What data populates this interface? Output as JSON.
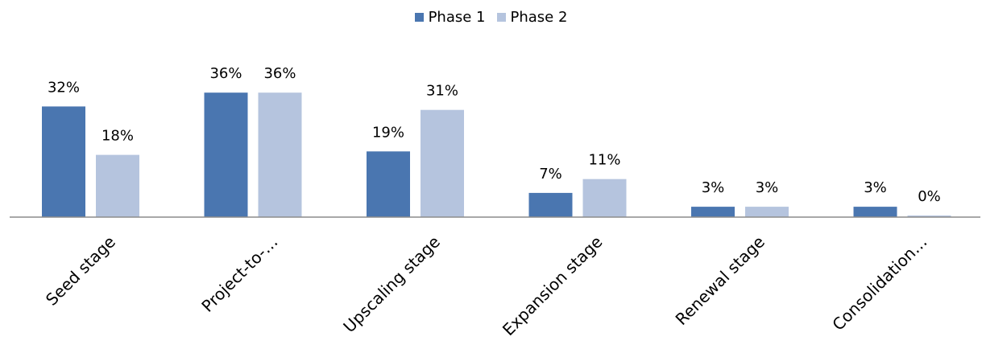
{
  "chart_data": {
    "type": "bar",
    "categories": [
      "Seed stage",
      "Project-to-…",
      "Upscaling stage",
      "Expansion stage",
      "Renewal stage",
      "Consolidation…"
    ],
    "series": [
      {
        "name": "Phase 1",
        "values": [
          32,
          36,
          19,
          7,
          3,
          3
        ],
        "labels": [
          "32%",
          "36%",
          "19%",
          "7%",
          "3%",
          "3%"
        ],
        "color": "#4a76b0"
      },
      {
        "name": "Phase 2",
        "values": [
          18,
          36,
          31,
          11,
          3,
          0
        ],
        "labels": [
          "18%",
          "36%",
          "31%",
          "11%",
          "3%",
          "0%"
        ],
        "color": "#b5c4de"
      }
    ],
    "ylim": [
      0,
      40
    ],
    "grid": false,
    "legend_position": "top-center"
  }
}
